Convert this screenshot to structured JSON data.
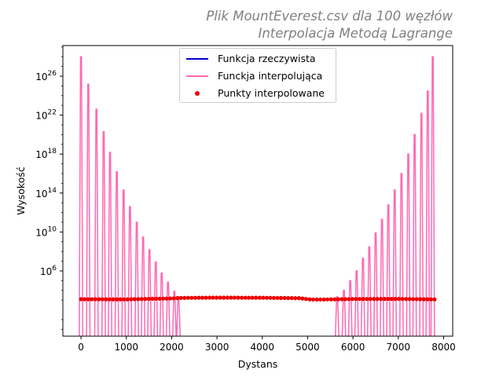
{
  "title": {
    "line1": "Plik MountEverest.csv dla 100 węzłów",
    "line2": "Interpolacja Metodą Lagrange"
  },
  "chart_data": {
    "type": "line",
    "xlabel": "Dystans",
    "ylabel": "Wysokość",
    "xlim": [
      -400,
      8200
    ],
    "ylim": [
      0.2,
      1.4e+29
    ],
    "yscale": "log",
    "grid": false,
    "legend_placement": "top-center",
    "x_ticks": [
      0,
      1000,
      2000,
      3000,
      4000,
      5000,
      6000,
      7000,
      8000
    ],
    "x_tick_labels": [
      "0",
      "1000",
      "2000",
      "3000",
      "4000",
      "5000",
      "6000",
      "7000",
      "8000"
    ],
    "y_ticks": [
      1000000.0,
      10000000000.0,
      100000000000000.0,
      1e+18,
      1e+22,
      1e+26
    ],
    "y_tick_labels": [
      {
        "base": "10",
        "exp": "6"
      },
      {
        "base": "10",
        "exp": "10"
      },
      {
        "base": "10",
        "exp": "14"
      },
      {
        "base": "10",
        "exp": "18"
      },
      {
        "base": "10",
        "exp": "22"
      },
      {
        "base": "10",
        "exp": "26"
      }
    ],
    "interpolation_peaks_left": {
      "x": [
        0,
        160,
        340,
        500,
        640,
        790,
        940,
        1080,
        1230,
        1370,
        1510,
        1650,
        1780,
        1920,
        2060,
        2150
      ],
      "y": [
        1e+28,
        1.5e+25,
        4e+22,
        2e+20,
        1.5e+18,
        1.5e+16,
        200000000000000.0,
        4000000000000.0,
        100000000000.0,
        3000000000.0,
        150000000.0,
        8000000.0,
        600000.0,
        70000.0,
        8000.0,
        2200.0
      ]
    },
    "interpolation_peaks_right": {
      "x": [
        5650,
        5800,
        5940,
        6080,
        6220,
        6360,
        6500,
        6640,
        6780,
        6920,
        7070,
        7220,
        7360,
        7510,
        7650,
        7760
      ],
      "y": [
        2200.0,
        10000.0,
        100000.0,
        1000000.0,
        20000000.0,
        300000000.0,
        8000000000.0,
        200000000000.0,
        6000000000000.0,
        200000000000000.0,
        1e+16,
        1e+18,
        1e+20,
        1.5e+22,
        3e+24,
        1e+28
      ],
      "notes": ""
    },
    "series": [
      {
        "name": "Funkcja rzeczywista",
        "color": "#0000cc",
        "style": "line",
        "x_range": [
          0,
          7800
        ],
        "approx_value": 1300
      },
      {
        "name": "Funckja interpolująca",
        "color": "#ff69b4",
        "style": "line"
      },
      {
        "name": "Punkty interpolowane",
        "color": "#ee0000",
        "style": "points",
        "x_range": [
          0,
          7800
        ],
        "count": 100,
        "profile": {
          "x": [
            0,
            1000,
            2000,
            2200,
            3000,
            4000,
            4800,
            5050,
            5200,
            6000,
            7000,
            7800
          ],
          "y": [
            1250,
            1200,
            1500,
            1700,
            1800,
            1750,
            1600,
            1200,
            1150,
            1300,
            1350,
            1200
          ]
        }
      }
    ]
  }
}
